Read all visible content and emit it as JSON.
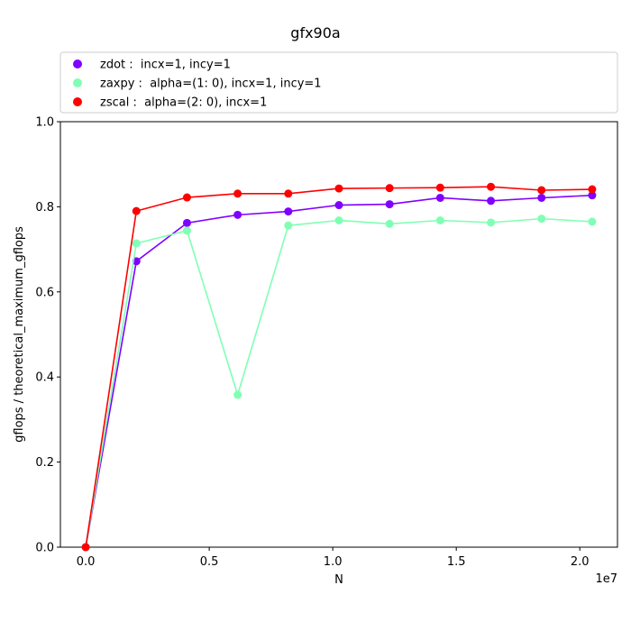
{
  "chart_data": {
    "type": "line",
    "title": "gfx90a",
    "xlabel": "N",
    "ylabel": "gflops / theoretical_maximum_gflops",
    "x_offset_text": "1e7",
    "xlim": [
      -1025000,
      21525000
    ],
    "ylim": [
      0.0,
      1.0
    ],
    "x_ticks": [
      0,
      5000000,
      10000000,
      15000000,
      20000000
    ],
    "x_tick_labels": [
      "0.0",
      "0.5",
      "1.0",
      "1.5",
      "2.0"
    ],
    "y_ticks": [
      0.0,
      0.2,
      0.4,
      0.6,
      0.8,
      1.0
    ],
    "y_tick_labels": [
      "0.0",
      "0.2",
      "0.4",
      "0.6",
      "0.8",
      "1.0"
    ],
    "legend_position": "top",
    "x": [
      0,
      2050000,
      4100000,
      6150000,
      8200000,
      10250000,
      12300000,
      14350000,
      16400000,
      18450000,
      20500000
    ],
    "series": [
      {
        "name": "zdot :  incx=1, incy=1",
        "color": "#8000ff",
        "values": [
          0.0,
          0.672,
          0.762,
          0.781,
          0.789,
          0.804,
          0.806,
          0.821,
          0.814,
          0.821,
          0.827
        ]
      },
      {
        "name": "zaxpy :  alpha=(1: 0), incx=1, incy=1",
        "color": "#80ffb4",
        "values": [
          0.0,
          0.714,
          0.744,
          0.358,
          0.756,
          0.768,
          0.76,
          0.768,
          0.763,
          0.772,
          0.765
        ]
      },
      {
        "name": "zscal :  alpha=(2: 0), incx=1",
        "color": "#ff0000",
        "values": [
          0.0,
          0.79,
          0.822,
          0.831,
          0.831,
          0.843,
          0.844,
          0.845,
          0.847,
          0.839,
          0.841
        ]
      }
    ]
  }
}
